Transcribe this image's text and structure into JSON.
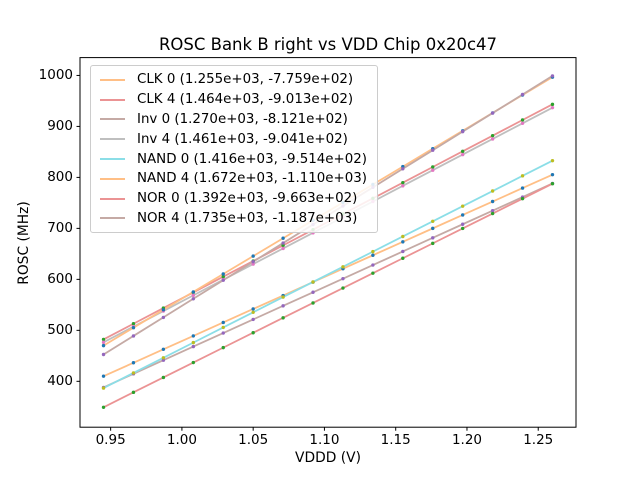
{
  "window": {
    "background": "#ffffff"
  },
  "chart_data": {
    "type": "scatter",
    "title": "ROSC Bank B right vs VDD Chip 0x20c47",
    "xlabel": "VDDD (V)",
    "ylabel": "ROSC (MHz)",
    "xlim": [
      0.9285,
      1.2765
    ],
    "ylim": [
      310,
      1035
    ],
    "grid": false,
    "legend_position": "upper left",
    "x_ticks": [
      0.95,
      1.0,
      1.05,
      1.1,
      1.15,
      1.2,
      1.25
    ],
    "x_tick_labels": [
      "0.95",
      "1.00",
      "1.05",
      "1.10",
      "1.15",
      "1.20",
      "1.25"
    ],
    "y_ticks": [
      400,
      500,
      600,
      700,
      800,
      900,
      1000
    ],
    "y_tick_labels": [
      "400",
      "500",
      "600",
      "700",
      "800",
      "900",
      "1000"
    ],
    "x": [
      0.945,
      0.966,
      0.987,
      1.008,
      1.029,
      1.05,
      1.071,
      1.092,
      1.113,
      1.134,
      1.155,
      1.176,
      1.197,
      1.218,
      1.239,
      1.26
    ],
    "series": [
      {
        "name": "CLK 0",
        "legend_label": "CLK 0 (1.255e+03, -7.759e+02)",
        "fit_slope": 1255,
        "fit_intercept": -775.9,
        "line_color": "#ffbf86",
        "marker_color": "#1f77b4",
        "values": [
          410.1,
          436.4,
          462.8,
          489.1,
          515.5,
          541.9,
          568.2,
          594.6,
          620.9,
          647.3,
          673.6,
          700.0,
          726.3,
          752.7,
          779.0,
          805.4
        ]
      },
      {
        "name": "CLK 4",
        "legend_label": "CLK 4 (1.464e+03, -9.013e+02)",
        "fit_slope": 1464,
        "fit_intercept": -901.3,
        "line_color": "#eb9394",
        "marker_color": "#2ca02c",
        "values": [
          482.2,
          512.9,
          543.7,
          574.4,
          605.2,
          635.9,
          666.7,
          697.4,
          728.2,
          758.9,
          789.6,
          820.4,
          851.1,
          881.9,
          912.6,
          943.3
        ]
      },
      {
        "name": "Inv 0",
        "legend_label": "Inv 0 (1.270e+03, -8.121e+02)",
        "fit_slope": 1270,
        "fit_intercept": -812.1,
        "line_color": "#c5aaa5",
        "marker_color": "#9467bd",
        "values": [
          388.1,
          414.7,
          441.4,
          468.1,
          494.7,
          521.4,
          548.1,
          574.7,
          601.4,
          628.1,
          654.7,
          681.4,
          708.1,
          734.7,
          761.4,
          788.1
        ]
      },
      {
        "name": "Inv 4",
        "legend_label": "Inv 4 (1.461e+03, -9.041e+02)",
        "fit_slope": 1461,
        "fit_intercept": -904.1,
        "line_color": "#bfbfbf",
        "marker_color": "#e377c2",
        "values": [
          476.5,
          507.2,
          537.9,
          568.6,
          599.3,
          630.0,
          660.6,
          691.3,
          722.0,
          752.7,
          783.4,
          814.1,
          844.7,
          875.4,
          906.1,
          936.8
        ]
      },
      {
        "name": "NAND 0",
        "legend_label": "NAND 0 (1.416e+03, -9.514e+02)",
        "fit_slope": 1416,
        "fit_intercept": -951.4,
        "line_color": "#8bdee7",
        "marker_color": "#bcbd22",
        "values": [
          386.7,
          416.5,
          446.2,
          475.9,
          505.7,
          535.4,
          565.2,
          594.9,
          624.6,
          654.4,
          684.1,
          713.9,
          743.6,
          773.3,
          803.1,
          832.8
        ]
      },
      {
        "name": "NAND 4",
        "legend_label": "NAND 4 (1.672e+03, -1.110e+03)",
        "fit_slope": 1672,
        "fit_intercept": -1110,
        "line_color": "#ffbf86",
        "marker_color": "#1f77b4",
        "values": [
          470.0,
          505.2,
          540.3,
          575.4,
          610.5,
          645.6,
          680.7,
          715.8,
          750.9,
          786.1,
          821.2,
          856.3,
          891.4,
          926.5,
          961.6,
          996.7
        ]
      },
      {
        "name": "NOR 0",
        "legend_label": "NOR 0 (1.392e+03, -9.663e+02)",
        "fit_slope": 1392,
        "fit_intercept": -966.3,
        "line_color": "#eb9394",
        "marker_color": "#2ca02c",
        "values": [
          349.1,
          378.4,
          407.6,
          436.8,
          466.1,
          495.3,
          524.5,
          553.7,
          583.0,
          612.2,
          641.4,
          670.6,
          699.9,
          729.1,
          758.3,
          787.6
        ]
      },
      {
        "name": "NOR 4",
        "legend_label": "NOR 4 (1.735e+03, -1.187e+03)",
        "fit_slope": 1735,
        "fit_intercept": -1187,
        "line_color": "#c5aaa5",
        "marker_color": "#9467bd",
        "values": [
          452.6,
          489.0,
          525.4,
          561.9,
          598.3,
          634.7,
          671.2,
          707.6,
          744.0,
          780.5,
          816.9,
          853.3,
          889.8,
          926.2,
          962.7,
          999.1
        ]
      }
    ]
  }
}
